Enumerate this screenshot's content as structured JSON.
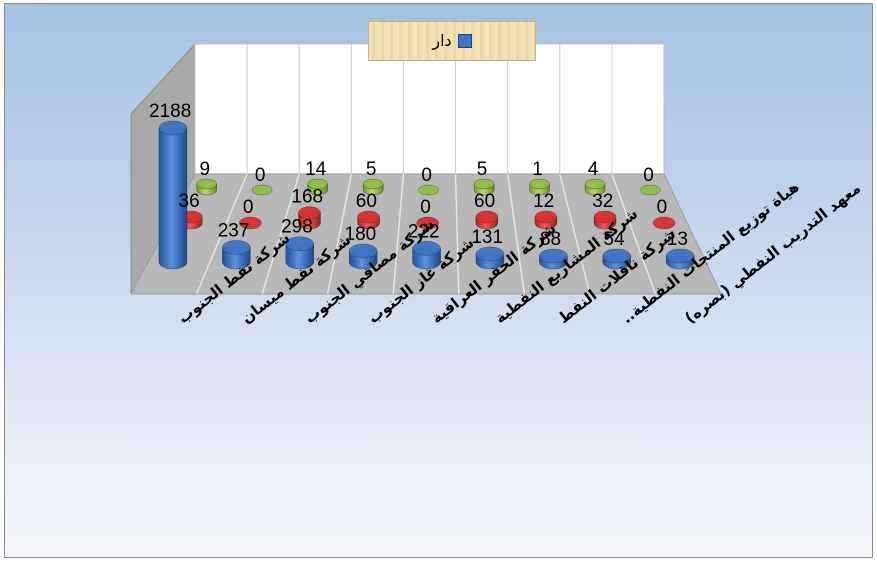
{
  "chart_data": {
    "type": "bar",
    "categories": [
      "شركة نفط الجنوب",
      "شركة نفط ميسان",
      "شركة مصافي الجنوب",
      "شركة غاز الجنوب",
      "شركة الحفر العراقية",
      "شركة المشاريع النفطية",
      "شركة ناقلات النفط",
      "هياة توزيع المنتجات النفطية..",
      "معهد التدريب النفطي (بصره)"
    ],
    "series": [
      {
        "name": "دار",
        "color": "#3d74c4",
        "values": [
          2188,
          237,
          298,
          180,
          222,
          131,
          88,
          54,
          13
        ]
      },
      {
        "color": "#d9302f",
        "values": [
          36,
          0,
          168,
          60,
          0,
          60,
          12,
          32,
          0
        ]
      },
      {
        "color": "#8fc142",
        "values": [
          9,
          0,
          14,
          5,
          0,
          5,
          1,
          4,
          0
        ]
      }
    ],
    "legend_position": "top",
    "grid": true,
    "three_d": true
  }
}
